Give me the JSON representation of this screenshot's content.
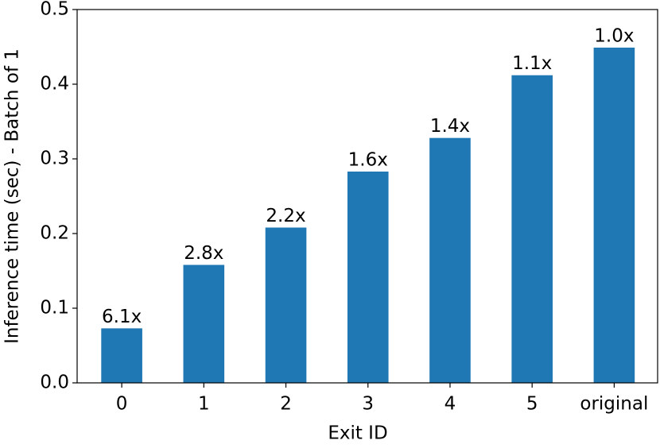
{
  "chart_data": {
    "type": "bar",
    "xlabel": "Exit ID",
    "ylabel": "Inference time (sec) - Batch of 1",
    "categories": [
      "0",
      "1",
      "2",
      "3",
      "4",
      "5",
      "original"
    ],
    "values": [
      0.073,
      0.158,
      0.208,
      0.283,
      0.328,
      0.412,
      0.449
    ],
    "annotations": [
      "6.1x",
      "2.8x",
      "2.2x",
      "1.6x",
      "1.4x",
      "1.1x",
      "1.0x"
    ],
    "color": "#1f77b4",
    "ylim": [
      0,
      0.5
    ],
    "yticks": [
      {
        "value": 0,
        "label": "0.0"
      },
      0.1,
      0.2,
      0.3,
      0.4,
      0.5
    ],
    "grid": false
  }
}
